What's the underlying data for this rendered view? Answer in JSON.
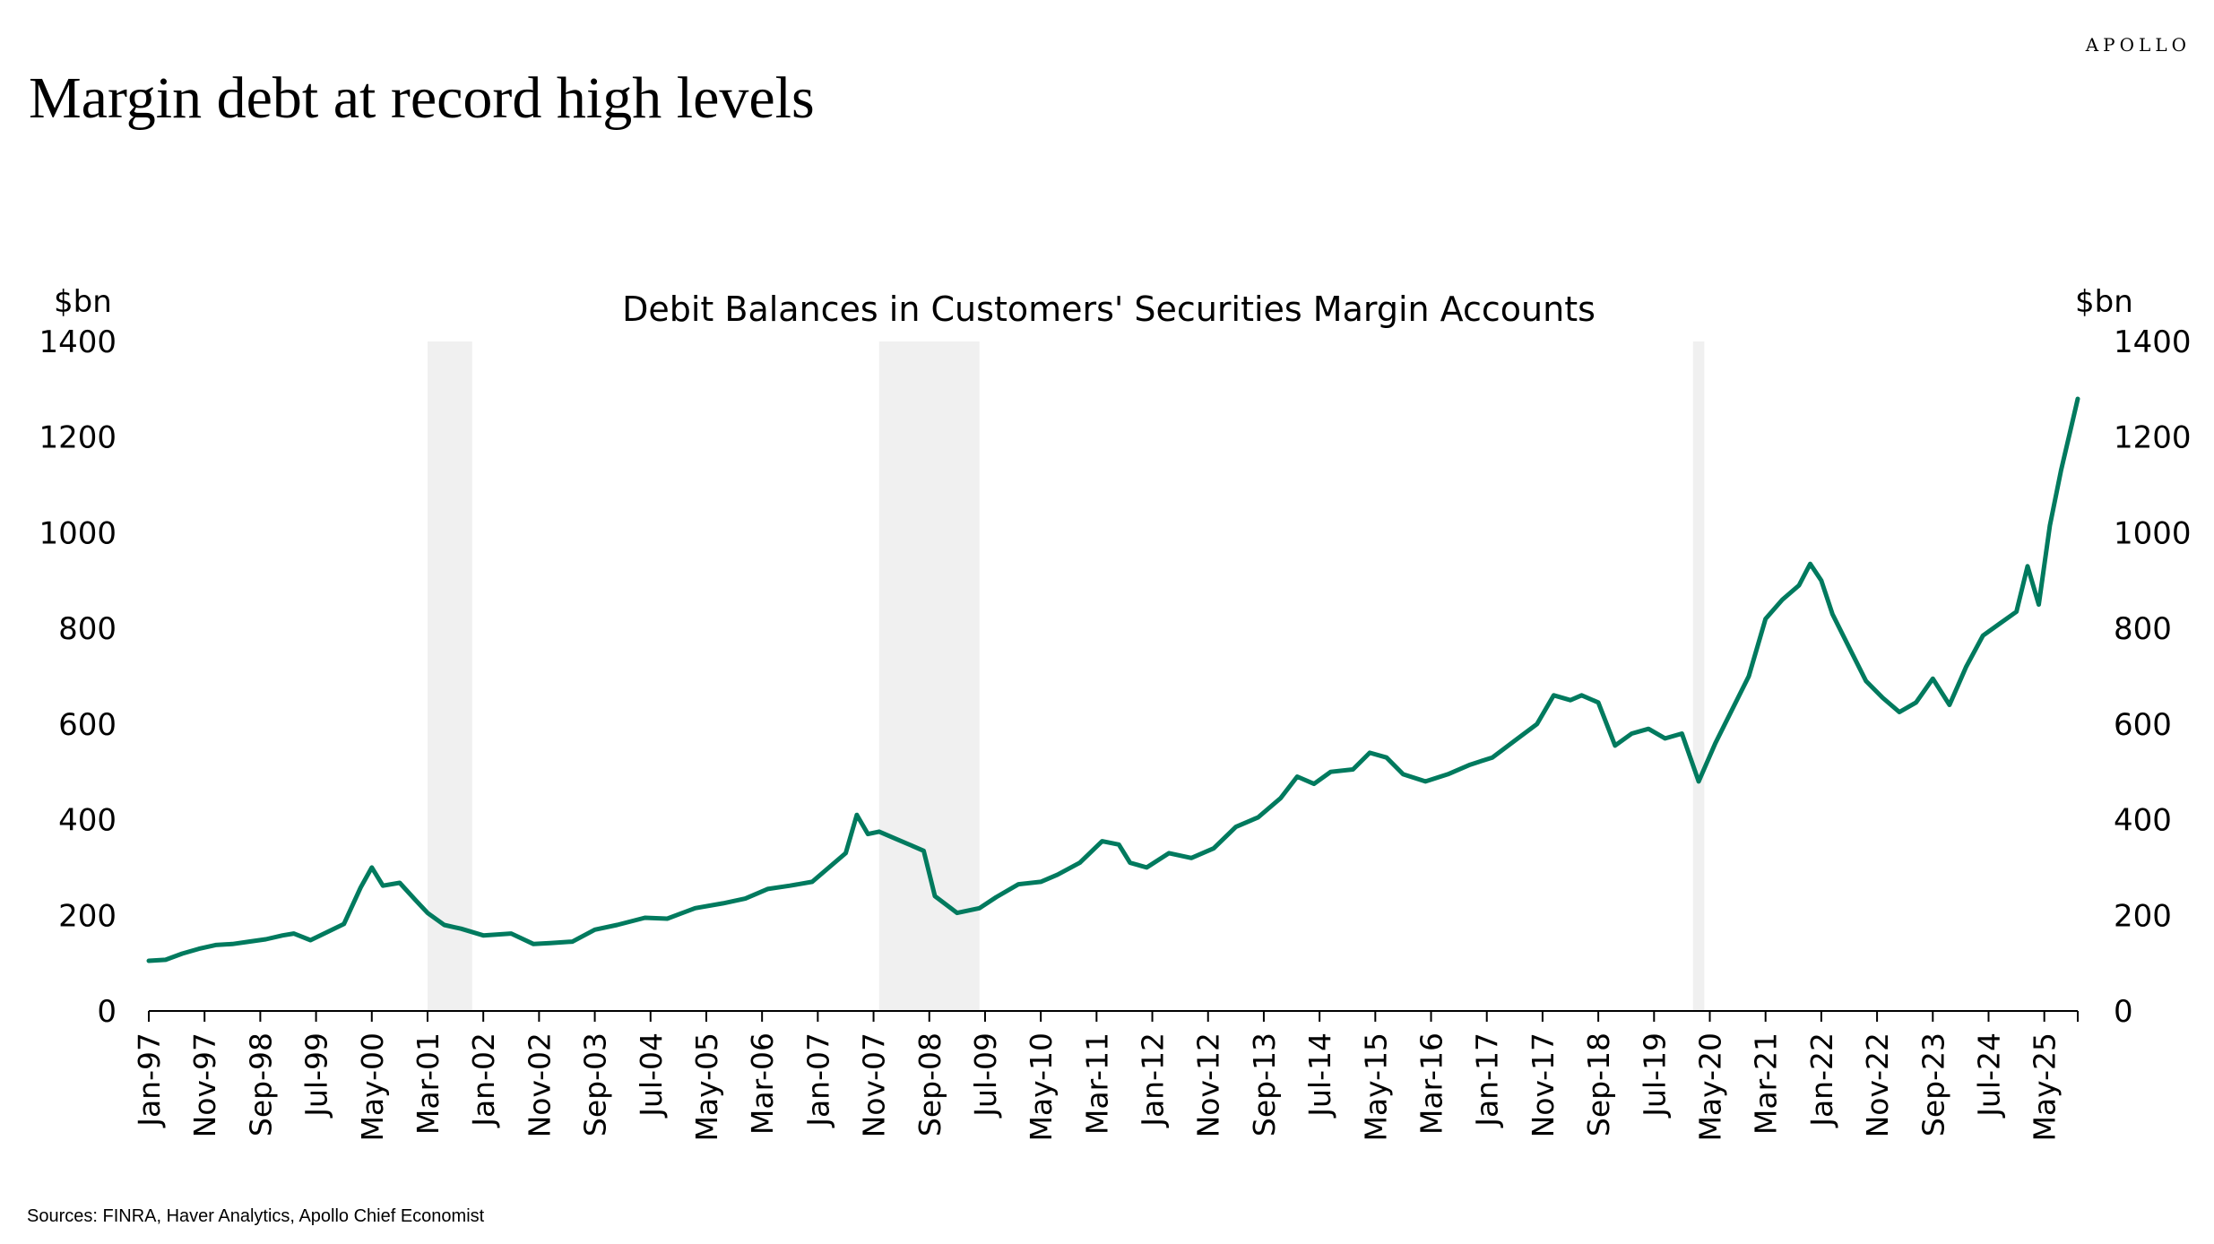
{
  "brand": "APOLLO",
  "headline": "Margin debt at record high levels",
  "source": "Sources: FINRA, Haver Analytics, Apollo Chief Economist",
  "chart_data": {
    "type": "line",
    "title": "Debit Balances in Customers' Securities Margin Accounts",
    "ylabel_left": "$bn",
    "ylabel_right": "$bn",
    "ylim": [
      0,
      1400
    ],
    "yticks": [
      0,
      200,
      400,
      600,
      800,
      1000,
      1200,
      1400
    ],
    "xlim": [
      "1997-01",
      "2025-11"
    ],
    "xtick_labels": [
      "Jan-97",
      "Nov-97",
      "Sep-98",
      "Jul-99",
      "May-00",
      "Mar-01",
      "Jan-02",
      "Nov-02",
      "Sep-03",
      "Jul-04",
      "May-05",
      "Mar-06",
      "Jan-07",
      "Nov-07",
      "Sep-08",
      "Jul-09",
      "May-10",
      "Mar-11",
      "Jan-12",
      "Nov-12",
      "Sep-13",
      "Jul-14",
      "May-15",
      "Mar-16",
      "Jan-17",
      "Nov-17",
      "Sep-18",
      "Jul-19",
      "May-20",
      "Mar-21",
      "Jan-22",
      "Nov-22",
      "Sep-23",
      "Jul-24",
      "May-25"
    ],
    "shaded_periods": [
      [
        "2001-03",
        "2001-11"
      ],
      [
        "2007-12",
        "2009-06"
      ],
      [
        "2020-02",
        "2020-04"
      ]
    ],
    "grid": false,
    "legend": "none",
    "line_color": "#007a5e",
    "shade_color": "#f0f0f0",
    "series": [
      {
        "points": [
          [
            "1997-01",
            105
          ],
          [
            "1997-04",
            107
          ],
          [
            "1997-07",
            120
          ],
          [
            "1997-10",
            130
          ],
          [
            "1998-01",
            138
          ],
          [
            "1998-04",
            140
          ],
          [
            "1998-07",
            145
          ],
          [
            "1998-10",
            150
          ],
          [
            "1999-01",
            158
          ],
          [
            "1999-03",
            162
          ],
          [
            "1999-06",
            148
          ],
          [
            "1999-09",
            165
          ],
          [
            "1999-12",
            182
          ],
          [
            "2000-03",
            258
          ],
          [
            "2000-05",
            300
          ],
          [
            "2000-07",
            262
          ],
          [
            "2000-10",
            268
          ],
          [
            "2001-01",
            230
          ],
          [
            "2001-03",
            205
          ],
          [
            "2001-06",
            180
          ],
          [
            "2001-09",
            172
          ],
          [
            "2002-01",
            158
          ],
          [
            "2002-06",
            162
          ],
          [
            "2002-10",
            140
          ],
          [
            "2003-01",
            142
          ],
          [
            "2003-05",
            145
          ],
          [
            "2003-09",
            170
          ],
          [
            "2004-01",
            180
          ],
          [
            "2004-06",
            195
          ],
          [
            "2004-10",
            193
          ],
          [
            "2005-03",
            215
          ],
          [
            "2005-08",
            225
          ],
          [
            "2005-12",
            235
          ],
          [
            "2006-04",
            255
          ],
          [
            "2006-08",
            262
          ],
          [
            "2006-12",
            270
          ],
          [
            "2007-03",
            300
          ],
          [
            "2007-06",
            330
          ],
          [
            "2007-08",
            410
          ],
          [
            "2007-10",
            370
          ],
          [
            "2007-12",
            375
          ],
          [
            "2008-03",
            360
          ],
          [
            "2008-06",
            345
          ],
          [
            "2008-08",
            335
          ],
          [
            "2008-10",
            240
          ],
          [
            "2009-02",
            205
          ],
          [
            "2009-06",
            215
          ],
          [
            "2009-09",
            238
          ],
          [
            "2010-01",
            265
          ],
          [
            "2010-05",
            270
          ],
          [
            "2010-08",
            285
          ],
          [
            "2010-12",
            310
          ],
          [
            "2011-04",
            355
          ],
          [
            "2011-07",
            348
          ],
          [
            "2011-09",
            310
          ],
          [
            "2011-12",
            300
          ],
          [
            "2012-04",
            330
          ],
          [
            "2012-08",
            320
          ],
          [
            "2012-12",
            340
          ],
          [
            "2013-04",
            385
          ],
          [
            "2013-08",
            405
          ],
          [
            "2013-12",
            445
          ],
          [
            "2014-03",
            490
          ],
          [
            "2014-06",
            475
          ],
          [
            "2014-09",
            500
          ],
          [
            "2015-01",
            505
          ],
          [
            "2015-04",
            540
          ],
          [
            "2015-07",
            530
          ],
          [
            "2015-10",
            495
          ],
          [
            "2016-02",
            480
          ],
          [
            "2016-06",
            495
          ],
          [
            "2016-10",
            515
          ],
          [
            "2017-02",
            530
          ],
          [
            "2017-06",
            565
          ],
          [
            "2017-10",
            600
          ],
          [
            "2018-01",
            660
          ],
          [
            "2018-04",
            650
          ],
          [
            "2018-06",
            660
          ],
          [
            "2018-09",
            645
          ],
          [
            "2018-12",
            555
          ],
          [
            "2019-03",
            580
          ],
          [
            "2019-06",
            590
          ],
          [
            "2019-09",
            570
          ],
          [
            "2019-12",
            580
          ],
          [
            "2020-03",
            480
          ],
          [
            "2020-06",
            560
          ],
          [
            "2020-09",
            630
          ],
          [
            "2020-12",
            700
          ],
          [
            "2021-03",
            820
          ],
          [
            "2021-06",
            860
          ],
          [
            "2021-09",
            890
          ],
          [
            "2021-11",
            935
          ],
          [
            "2022-01",
            900
          ],
          [
            "2022-03",
            830
          ],
          [
            "2022-06",
            760
          ],
          [
            "2022-09",
            690
          ],
          [
            "2022-12",
            655
          ],
          [
            "2023-03",
            625
          ],
          [
            "2023-06",
            645
          ],
          [
            "2023-09",
            695
          ],
          [
            "2023-12",
            640
          ],
          [
            "2024-03",
            720
          ],
          [
            "2024-06",
            785
          ],
          [
            "2024-09",
            810
          ],
          [
            "2024-12",
            835
          ],
          [
            "2025-02",
            930
          ],
          [
            "2025-04",
            850
          ],
          [
            "2025-06",
            1015
          ],
          [
            "2025-08",
            1130
          ],
          [
            "2025-10",
            1230
          ],
          [
            "2025-11",
            1280
          ]
        ]
      }
    ]
  }
}
